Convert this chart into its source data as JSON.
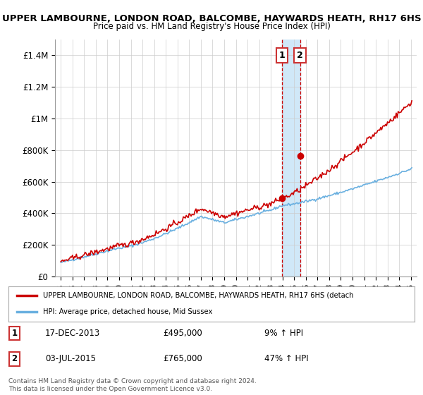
{
  "title": "UPPER LAMBOURNE, LONDON ROAD, BALCOMBE, HAYWARDS HEATH, RH17 6HS",
  "subtitle": "Price paid vs. HM Land Registry's House Price Index (HPI)",
  "ylim": [
    0,
    1500000
  ],
  "yticks": [
    0,
    200000,
    400000,
    600000,
    800000,
    1000000,
    1200000,
    1400000
  ],
  "ytick_labels": [
    "£0",
    "£200K",
    "£400K",
    "£600K",
    "£800K",
    "£1M",
    "£1.2M",
    "£1.4M"
  ],
  "hpi_color": "#6ab0e0",
  "price_color": "#cc0000",
  "marker1_date": 2013.96,
  "marker1_price": 495000,
  "marker2_date": 2015.5,
  "marker2_price": 765000,
  "marker1_label": "17-DEC-2013",
  "marker1_amount": "£495,000",
  "marker1_hpi": "9% ↑ HPI",
  "marker2_label": "03-JUL-2015",
  "marker2_amount": "£765,000",
  "marker2_hpi": "47% ↑ HPI",
  "legend_line1": "UPPER LAMBOURNE, LONDON ROAD, BALCOMBE, HAYWARDS HEATH, RH17 6HS (detach",
  "legend_line2": "HPI: Average price, detached house, Mid Sussex",
  "footnote": "Contains HM Land Registry data © Crown copyright and database right 2024.\nThis data is licensed under the Open Government Licence v3.0.",
  "bg_color": "#ffffff",
  "grid_color": "#cccccc",
  "highlight_fill": "#d0e8f8"
}
